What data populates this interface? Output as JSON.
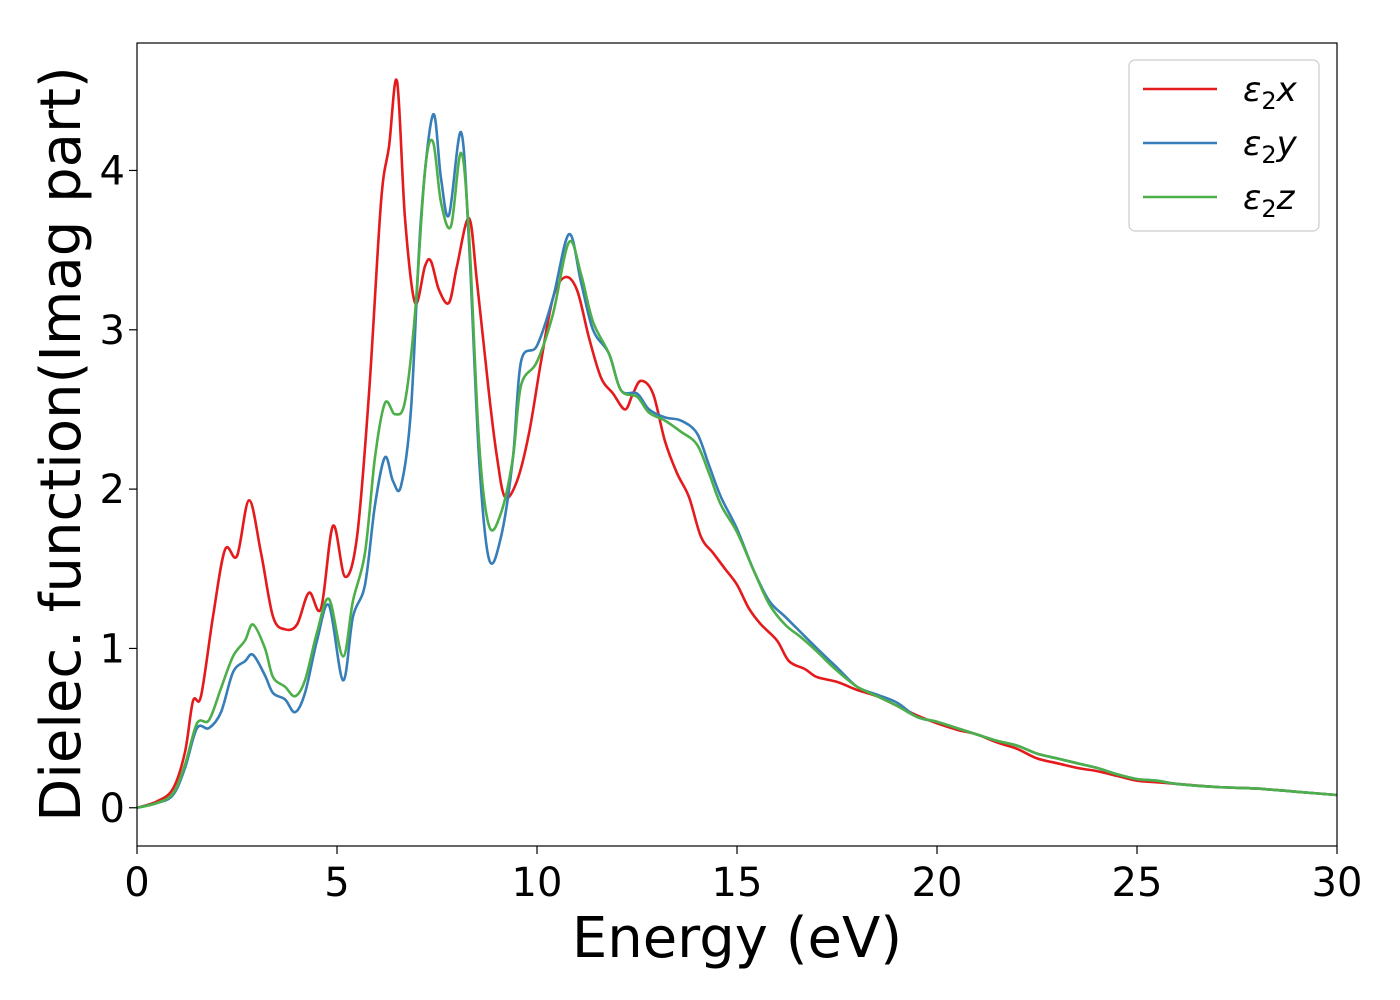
{
  "chart_data": {
    "type": "line",
    "title": "",
    "xlabel": "Energy (eV)",
    "ylabel": "Dielec. function(Imag part)",
    "xlim": [
      0,
      30
    ],
    "ylim": [
      -0.24,
      4.8
    ],
    "xticks": [
      0,
      5,
      10,
      15,
      20,
      25,
      30
    ],
    "yticks": [
      0,
      1,
      2,
      3,
      4
    ],
    "grid": false,
    "legend_position": "top-right",
    "series": [
      {
        "name": "ε₂x",
        "legend_main": "ε",
        "legend_sub": "2",
        "legend_suffix": "x",
        "color": "#e41a1c",
        "points": [
          [
            0,
            0
          ],
          [
            0.5,
            0.04
          ],
          [
            0.9,
            0.12
          ],
          [
            1.2,
            0.35
          ],
          [
            1.4,
            0.67
          ],
          [
            1.6,
            0.7
          ],
          [
            1.9,
            1.2
          ],
          [
            2.2,
            1.62
          ],
          [
            2.5,
            1.58
          ],
          [
            2.8,
            1.93
          ],
          [
            3.1,
            1.6
          ],
          [
            3.4,
            1.2
          ],
          [
            3.7,
            1.12
          ],
          [
            4.0,
            1.15
          ],
          [
            4.3,
            1.35
          ],
          [
            4.6,
            1.25
          ],
          [
            4.9,
            1.77
          ],
          [
            5.2,
            1.45
          ],
          [
            5.5,
            1.7
          ],
          [
            5.8,
            2.6
          ],
          [
            6.1,
            3.8
          ],
          [
            6.3,
            4.15
          ],
          [
            6.5,
            4.56
          ],
          [
            6.7,
            3.7
          ],
          [
            6.95,
            3.17
          ],
          [
            7.2,
            3.4
          ],
          [
            7.35,
            3.43
          ],
          [
            7.55,
            3.25
          ],
          [
            7.8,
            3.17
          ],
          [
            8.0,
            3.4
          ],
          [
            8.3,
            3.7
          ],
          [
            8.5,
            3.3
          ],
          [
            8.8,
            2.6
          ],
          [
            9.0,
            2.2
          ],
          [
            9.2,
            1.95
          ],
          [
            9.5,
            2.05
          ],
          [
            9.8,
            2.35
          ],
          [
            10.1,
            2.8
          ],
          [
            10.4,
            3.2
          ],
          [
            10.7,
            3.33
          ],
          [
            11.0,
            3.25
          ],
          [
            11.3,
            2.95
          ],
          [
            11.6,
            2.7
          ],
          [
            11.9,
            2.6
          ],
          [
            12.2,
            2.5
          ],
          [
            12.4,
            2.6
          ],
          [
            12.6,
            2.68
          ],
          [
            12.9,
            2.6
          ],
          [
            13.2,
            2.3
          ],
          [
            13.5,
            2.1
          ],
          [
            13.8,
            1.95
          ],
          [
            14.1,
            1.7
          ],
          [
            14.4,
            1.6
          ],
          [
            14.7,
            1.5
          ],
          [
            15.0,
            1.4
          ],
          [
            15.3,
            1.25
          ],
          [
            15.6,
            1.15
          ],
          [
            16.0,
            1.05
          ],
          [
            16.3,
            0.92
          ],
          [
            16.7,
            0.87
          ],
          [
            17.0,
            0.82
          ],
          [
            17.5,
            0.79
          ],
          [
            18.0,
            0.74
          ],
          [
            18.5,
            0.7
          ],
          [
            19.0,
            0.64
          ],
          [
            19.5,
            0.58
          ],
          [
            20,
            0.53
          ],
          [
            20.5,
            0.49
          ],
          [
            21,
            0.46
          ],
          [
            21.5,
            0.41
          ],
          [
            22,
            0.37
          ],
          [
            22.5,
            0.31
          ],
          [
            23,
            0.28
          ],
          [
            23.5,
            0.25
          ],
          [
            24,
            0.23
          ],
          [
            24.5,
            0.2
          ],
          [
            25,
            0.17
          ],
          [
            25.5,
            0.16
          ],
          [
            26,
            0.15
          ],
          [
            27,
            0.13
          ],
          [
            28,
            0.12
          ],
          [
            29,
            0.1
          ],
          [
            30,
            0.08
          ]
        ]
      },
      {
        "name": "ε₂y",
        "legend_main": "ε",
        "legend_sub": "2",
        "legend_suffix": "y",
        "color": "#377eb8",
        "points": [
          [
            0,
            0
          ],
          [
            0.5,
            0.03
          ],
          [
            0.9,
            0.08
          ],
          [
            1.2,
            0.25
          ],
          [
            1.5,
            0.5
          ],
          [
            1.8,
            0.5
          ],
          [
            2.1,
            0.6
          ],
          [
            2.4,
            0.85
          ],
          [
            2.7,
            0.92
          ],
          [
            2.9,
            0.96
          ],
          [
            3.2,
            0.83
          ],
          [
            3.4,
            0.72
          ],
          [
            3.7,
            0.68
          ],
          [
            3.95,
            0.6
          ],
          [
            4.2,
            0.72
          ],
          [
            4.5,
            1.05
          ],
          [
            4.8,
            1.27
          ],
          [
            5.15,
            0.8
          ],
          [
            5.4,
            1.2
          ],
          [
            5.7,
            1.4
          ],
          [
            5.95,
            1.9
          ],
          [
            6.2,
            2.2
          ],
          [
            6.4,
            2.05
          ],
          [
            6.6,
            2.02
          ],
          [
            6.85,
            2.5
          ],
          [
            7.1,
            3.7
          ],
          [
            7.4,
            4.35
          ],
          [
            7.6,
            3.95
          ],
          [
            7.8,
            3.72
          ],
          [
            8.1,
            4.24
          ],
          [
            8.3,
            3.55
          ],
          [
            8.55,
            2.2
          ],
          [
            8.8,
            1.56
          ],
          [
            9.1,
            1.7
          ],
          [
            9.4,
            2.2
          ],
          [
            9.6,
            2.8
          ],
          [
            10.0,
            2.9
          ],
          [
            10.4,
            3.2
          ],
          [
            10.8,
            3.6
          ],
          [
            11.1,
            3.3
          ],
          [
            11.4,
            3.0
          ],
          [
            11.8,
            2.85
          ],
          [
            12.1,
            2.62
          ],
          [
            12.5,
            2.6
          ],
          [
            12.8,
            2.5
          ],
          [
            13.2,
            2.45
          ],
          [
            13.6,
            2.43
          ],
          [
            14.0,
            2.35
          ],
          [
            14.3,
            2.15
          ],
          [
            14.6,
            1.95
          ],
          [
            15.0,
            1.75
          ],
          [
            15.4,
            1.5
          ],
          [
            15.8,
            1.3
          ],
          [
            16.2,
            1.2
          ],
          [
            16.6,
            1.1
          ],
          [
            17.0,
            1.0
          ],
          [
            17.5,
            0.88
          ],
          [
            18.0,
            0.76
          ],
          [
            18.5,
            0.71
          ],
          [
            19.0,
            0.66
          ],
          [
            19.5,
            0.57
          ],
          [
            20,
            0.54
          ],
          [
            20.5,
            0.5
          ],
          [
            21,
            0.46
          ],
          [
            21.5,
            0.42
          ],
          [
            22,
            0.39
          ],
          [
            22.5,
            0.34
          ],
          [
            23,
            0.31
          ],
          [
            23.5,
            0.28
          ],
          [
            24,
            0.25
          ],
          [
            24.5,
            0.21
          ],
          [
            25,
            0.18
          ],
          [
            25.5,
            0.17
          ],
          [
            26,
            0.15
          ],
          [
            27,
            0.13
          ],
          [
            28,
            0.12
          ],
          [
            29,
            0.1
          ],
          [
            30,
            0.08
          ]
        ]
      },
      {
        "name": "ε₂z",
        "legend_main": "ε",
        "legend_sub": "2",
        "legend_suffix": "z",
        "color": "#4daf4a",
        "points": [
          [
            0,
            0
          ],
          [
            0.5,
            0.03
          ],
          [
            0.9,
            0.09
          ],
          [
            1.2,
            0.27
          ],
          [
            1.5,
            0.53
          ],
          [
            1.8,
            0.55
          ],
          [
            2.1,
            0.75
          ],
          [
            2.4,
            0.95
          ],
          [
            2.7,
            1.05
          ],
          [
            2.9,
            1.15
          ],
          [
            3.2,
            1.0
          ],
          [
            3.4,
            0.82
          ],
          [
            3.7,
            0.76
          ],
          [
            3.95,
            0.7
          ],
          [
            4.2,
            0.8
          ],
          [
            4.5,
            1.1
          ],
          [
            4.8,
            1.31
          ],
          [
            5.15,
            0.95
          ],
          [
            5.4,
            1.3
          ],
          [
            5.7,
            1.6
          ],
          [
            5.95,
            2.2
          ],
          [
            6.2,
            2.54
          ],
          [
            6.45,
            2.47
          ],
          [
            6.7,
            2.55
          ],
          [
            6.95,
            3.1
          ],
          [
            7.2,
            4.0
          ],
          [
            7.4,
            4.18
          ],
          [
            7.6,
            3.8
          ],
          [
            7.85,
            3.65
          ],
          [
            8.1,
            4.11
          ],
          [
            8.3,
            3.6
          ],
          [
            8.55,
            2.3
          ],
          [
            8.8,
            1.77
          ],
          [
            9.1,
            1.85
          ],
          [
            9.4,
            2.2
          ],
          [
            9.6,
            2.65
          ],
          [
            10.0,
            2.8
          ],
          [
            10.4,
            3.1
          ],
          [
            10.8,
            3.55
          ],
          [
            11.1,
            3.35
          ],
          [
            11.4,
            3.05
          ],
          [
            11.8,
            2.85
          ],
          [
            12.1,
            2.62
          ],
          [
            12.5,
            2.58
          ],
          [
            12.8,
            2.48
          ],
          [
            13.2,
            2.43
          ],
          [
            13.6,
            2.36
          ],
          [
            14.0,
            2.28
          ],
          [
            14.3,
            2.1
          ],
          [
            14.6,
            1.9
          ],
          [
            15.0,
            1.73
          ],
          [
            15.4,
            1.5
          ],
          [
            15.8,
            1.28
          ],
          [
            16.2,
            1.15
          ],
          [
            16.6,
            1.07
          ],
          [
            17.0,
            0.98
          ],
          [
            17.5,
            0.86
          ],
          [
            18.0,
            0.76
          ],
          [
            18.5,
            0.7
          ],
          [
            19.0,
            0.64
          ],
          [
            19.5,
            0.57
          ],
          [
            20,
            0.54
          ],
          [
            20.5,
            0.5
          ],
          [
            21,
            0.46
          ],
          [
            21.5,
            0.42
          ],
          [
            22,
            0.39
          ],
          [
            22.5,
            0.34
          ],
          [
            23,
            0.31
          ],
          [
            23.5,
            0.28
          ],
          [
            24,
            0.25
          ],
          [
            24.5,
            0.21
          ],
          [
            25,
            0.18
          ],
          [
            25.5,
            0.17
          ],
          [
            26,
            0.15
          ],
          [
            27,
            0.13
          ],
          [
            28,
            0.12
          ],
          [
            29,
            0.1
          ],
          [
            30,
            0.08
          ]
        ]
      }
    ]
  }
}
